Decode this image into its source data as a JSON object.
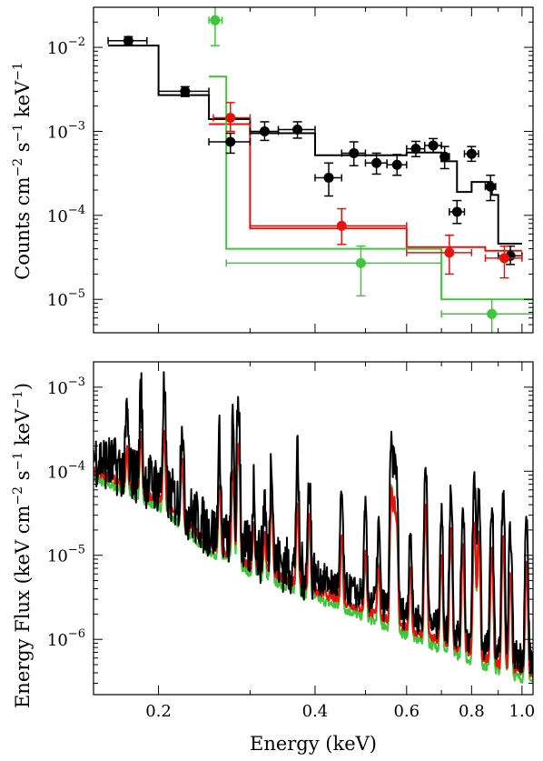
{
  "colors": {
    "black": "#000000",
    "red": "#e8120c",
    "green": "#3fc63a"
  },
  "chart_data": [
    {
      "type": "scatter",
      "xlabel": "",
      "ylabel_main": "Counts cm",
      "ylabel_exp1": "−2",
      "ylabel_mid": " s",
      "ylabel_exp2": "−1",
      "ylabel_end": " keV",
      "ylabel_exp3": "−1",
      "xscale": "log",
      "yscale": "log",
      "xlim": [
        0.15,
        1.05
      ],
      "ylim": [
        4e-06,
        0.03
      ],
      "y_ticks": [
        {
          "value": 1e-05,
          "base": "10",
          "exp": "−5"
        },
        {
          "value": 0.0001,
          "base": "10",
          "exp": "−4"
        },
        {
          "value": 0.001,
          "base": "10",
          "exp": "−3"
        },
        {
          "value": 0.01,
          "base": "10",
          "exp": "−2"
        }
      ],
      "series": [
        {
          "color": "black",
          "points": [
            {
              "x": 0.175,
              "y": 0.012,
              "xerr": [
                0.16,
                0.19
              ],
              "yerr": [
                0.0108,
                0.0134
              ]
            },
            {
              "x": 0.225,
              "y": 0.003,
              "xerr": [
                0.2,
                0.25
              ],
              "yerr": [
                0.0026,
                0.0034
              ]
            },
            {
              "x": 0.275,
              "y": 0.00075,
              "xerr": [
                0.25,
                0.3
              ],
              "yerr": [
                0.00055,
                0.00095
              ]
            },
            {
              "x": 0.32,
              "y": 0.001,
              "xerr": [
                0.3,
                0.34
              ],
              "yerr": [
                0.00078,
                0.0013
              ]
            },
            {
              "x": 0.37,
              "y": 0.00105,
              "xerr": [
                0.34,
                0.4
              ],
              "yerr": [
                0.00083,
                0.0013
              ]
            },
            {
              "x": 0.425,
              "y": 0.00028,
              "xerr": [
                0.4,
                0.45
              ],
              "yerr": [
                0.00017,
                0.00042
              ]
            },
            {
              "x": 0.475,
              "y": 0.00055,
              "xerr": [
                0.45,
                0.5
              ],
              "yerr": [
                0.00039,
                0.00075
              ]
            },
            {
              "x": 0.525,
              "y": 0.00042,
              "xerr": [
                0.5,
                0.55
              ],
              "yerr": [
                0.00031,
                0.00055
              ]
            },
            {
              "x": 0.575,
              "y": 0.0004,
              "xerr": [
                0.55,
                0.6
              ],
              "yerr": [
                0.0003,
                0.00053
              ]
            },
            {
              "x": 0.625,
              "y": 0.00062,
              "xerr": [
                0.6,
                0.65
              ],
              "yerr": [
                0.0005,
                0.00076
              ]
            },
            {
              "x": 0.675,
              "y": 0.00068,
              "xerr": [
                0.65,
                0.7
              ],
              "yerr": [
                0.00056,
                0.00082
              ]
            },
            {
              "x": 0.71,
              "y": 0.0005,
              "xerr": [
                0.7,
                0.725
              ],
              "yerr": [
                0.00036,
                0.00066
              ]
            },
            {
              "x": 0.75,
              "y": 0.00011,
              "xerr": [
                0.725,
                0.775
              ],
              "yerr": [
                8e-05,
                0.00015
              ]
            },
            {
              "x": 0.8,
              "y": 0.00054,
              "xerr": [
                0.775,
                0.825
              ],
              "yerr": [
                0.00044,
                0.00066
              ]
            },
            {
              "x": 0.87,
              "y": 0.00022,
              "xerr": [
                0.85,
                0.89
              ],
              "yerr": [
                0.00015,
                0.0003
              ]
            },
            {
              "x": 0.95,
              "y": 3.3e-05,
              "xerr": [
                0.9,
                1.0
              ],
              "yerr": [
                2.6e-05,
                4.3e-05
              ]
            }
          ],
          "model_step": [
            [
              0.16,
              0.0105
            ],
            [
              0.2,
              0.0105
            ],
            [
              0.2,
              0.0027
            ],
            [
              0.25,
              0.0027
            ],
            [
              0.25,
              0.0014
            ],
            [
              0.3,
              0.0014
            ],
            [
              0.3,
              0.00095
            ],
            [
              0.4,
              0.00095
            ],
            [
              0.4,
              0.00052
            ],
            [
              0.6,
              0.00052
            ],
            [
              0.6,
              0.00056
            ],
            [
              0.7,
              0.00056
            ],
            [
              0.7,
              0.00044
            ],
            [
              0.75,
              0.00044
            ],
            [
              0.75,
              0.00019
            ],
            [
              0.8,
              0.00019
            ],
            [
              0.8,
              0.00025
            ],
            [
              0.875,
              0.00025
            ],
            [
              0.875,
              0.000175
            ],
            [
              0.9,
              0.000175
            ],
            [
              0.9,
              4.6e-05
            ],
            [
              1.0,
              4.6e-05
            ]
          ]
        },
        {
          "color": "red",
          "points": [
            {
              "x": 0.275,
              "y": 0.00145,
              "xerr": [
                0.255,
                0.3
              ],
              "yerr": [
                0.001,
                0.0022
              ]
            },
            {
              "x": 0.45,
              "y": 7.5e-05,
              "xerr": [
                0.3,
                0.6
              ],
              "yerr": [
                4.5e-05,
                0.00012
              ]
            },
            {
              "x": 0.725,
              "y": 3.6e-05,
              "xerr": [
                0.6,
                0.8
              ],
              "yerr": [
                2e-05,
                5.8e-05
              ]
            },
            {
              "x": 0.925,
              "y": 3.1e-05,
              "xerr": [
                0.85,
                1.0
              ],
              "yerr": [
                1.8e-05,
                4.3e-05
              ]
            }
          ],
          "model_step": [
            [
              0.25,
              0.00122
            ],
            [
              0.3,
              0.00122
            ],
            [
              0.3,
              7e-05
            ],
            [
              0.6,
              7e-05
            ],
            [
              0.6,
              4.2e-05
            ],
            [
              0.85,
              4.2e-05
            ],
            [
              0.85,
              3.8e-05
            ],
            [
              1.0,
              3.8e-05
            ]
          ]
        },
        {
          "color": "green",
          "points": [
            {
              "x": 0.257,
              "y": 0.021,
              "xerr": [
                0.25,
                0.265
              ],
              "yerr": [
                0.0105,
                0.031
              ]
            },
            {
              "x": 0.49,
              "y": 2.7e-05,
              "xerr": [
                0.27,
                0.7
              ],
              "yerr": [
                1.1e-05,
                4.3e-05
              ]
            },
            {
              "x": 0.875,
              "y": 6.7e-06,
              "xerr": [
                0.7,
                1.05
              ],
              "yerr": [
                2.8e-06,
                1e-05
              ]
            }
          ],
          "model_step": [
            [
              0.25,
              0.0045
            ],
            [
              0.27,
              0.0045
            ],
            [
              0.27,
              4e-05
            ],
            [
              0.7,
              4e-05
            ],
            [
              0.7,
              1e-05
            ],
            [
              1.05,
              1e-05
            ]
          ]
        }
      ]
    },
    {
      "type": "line",
      "xlabel": "Energy (keV)",
      "ylabel_main": "Energy Flux (keV cm",
      "ylabel_exp1": "−2",
      "ylabel_mid": " s",
      "ylabel_exp2": "−1",
      "ylabel_end": " keV",
      "ylabel_exp3": "−1",
      "ylabel_close": ")",
      "xscale": "log",
      "yscale": "log",
      "xlim": [
        0.15,
        1.05
      ],
      "ylim": [
        2.2e-07,
        0.002
      ],
      "x_ticks": [
        {
          "value": 0.2,
          "label": "0.2"
        },
        {
          "value": 0.4,
          "label": "0.4"
        },
        {
          "value": 0.6,
          "label": "0.6"
        },
        {
          "value": 0.8,
          "label": "0.8"
        },
        {
          "value": 1.0,
          "label": "1.0"
        }
      ],
      "y_ticks": [
        {
          "value": 1e-06,
          "base": "10",
          "exp": "−6"
        },
        {
          "value": 1e-05,
          "base": "10",
          "exp": "−5"
        },
        {
          "value": 0.0001,
          "base": "10",
          "exp": "−4"
        },
        {
          "value": 0.001,
          "base": "10",
          "exp": "−3"
        }
      ],
      "continuum_anchors": [
        [
          0.15,
          0.00012
        ],
        [
          0.2,
          5.5e-05
        ],
        [
          0.25,
          1.6e-05
        ],
        [
          0.3,
          9e-06
        ],
        [
          0.4,
          4.5e-06
        ],
        [
          0.5,
          2.6e-06
        ],
        [
          0.6,
          1.6e-06
        ],
        [
          0.7,
          1.1e-06
        ],
        [
          0.8,
          8e-07
        ],
        [
          0.9,
          6e-07
        ],
        [
          1.05,
          4.5e-07
        ]
      ],
      "emission_lines": [
        [
          0.174,
          0.0004
        ],
        [
          0.185,
          0.00075
        ],
        [
          0.205,
          0.0008
        ],
        [
          0.222,
          0.0004
        ],
        [
          0.262,
          0.0002
        ],
        [
          0.278,
          0.0003
        ],
        [
          0.285,
          0.0007
        ],
        [
          0.305,
          6e-05
        ],
        [
          0.32,
          4e-05
        ],
        [
          0.33,
          0.00014
        ],
        [
          0.37,
          0.00012
        ],
        [
          0.39,
          8e-05
        ],
        [
          0.45,
          5e-05
        ],
        [
          0.5,
          3e-05
        ],
        [
          0.53,
          2e-05
        ],
        [
          0.561,
          0.0002
        ],
        [
          0.568,
          0.00015
        ],
        [
          0.574,
          8e-05
        ],
        [
          0.61,
          2e-05
        ],
        [
          0.653,
          0.00012
        ],
        [
          0.7,
          3e-05
        ],
        [
          0.73,
          6e-05
        ],
        [
          0.77,
          4e-05
        ],
        [
          0.81,
          8e-05
        ],
        [
          0.826,
          6e-05
        ],
        [
          0.875,
          4e-05
        ],
        [
          0.92,
          5e-05
        ],
        [
          0.95,
          2e-05
        ],
        [
          1.02,
          2.5e-05
        ]
      ],
      "series": [
        {
          "color": "black",
          "continuum_scale": 1.25,
          "noisy": true
        },
        {
          "color": "red",
          "continuum_scale": 0.85,
          "noisy": false
        },
        {
          "color": "green",
          "continuum_scale": 0.7,
          "noisy": false
        }
      ]
    }
  ]
}
